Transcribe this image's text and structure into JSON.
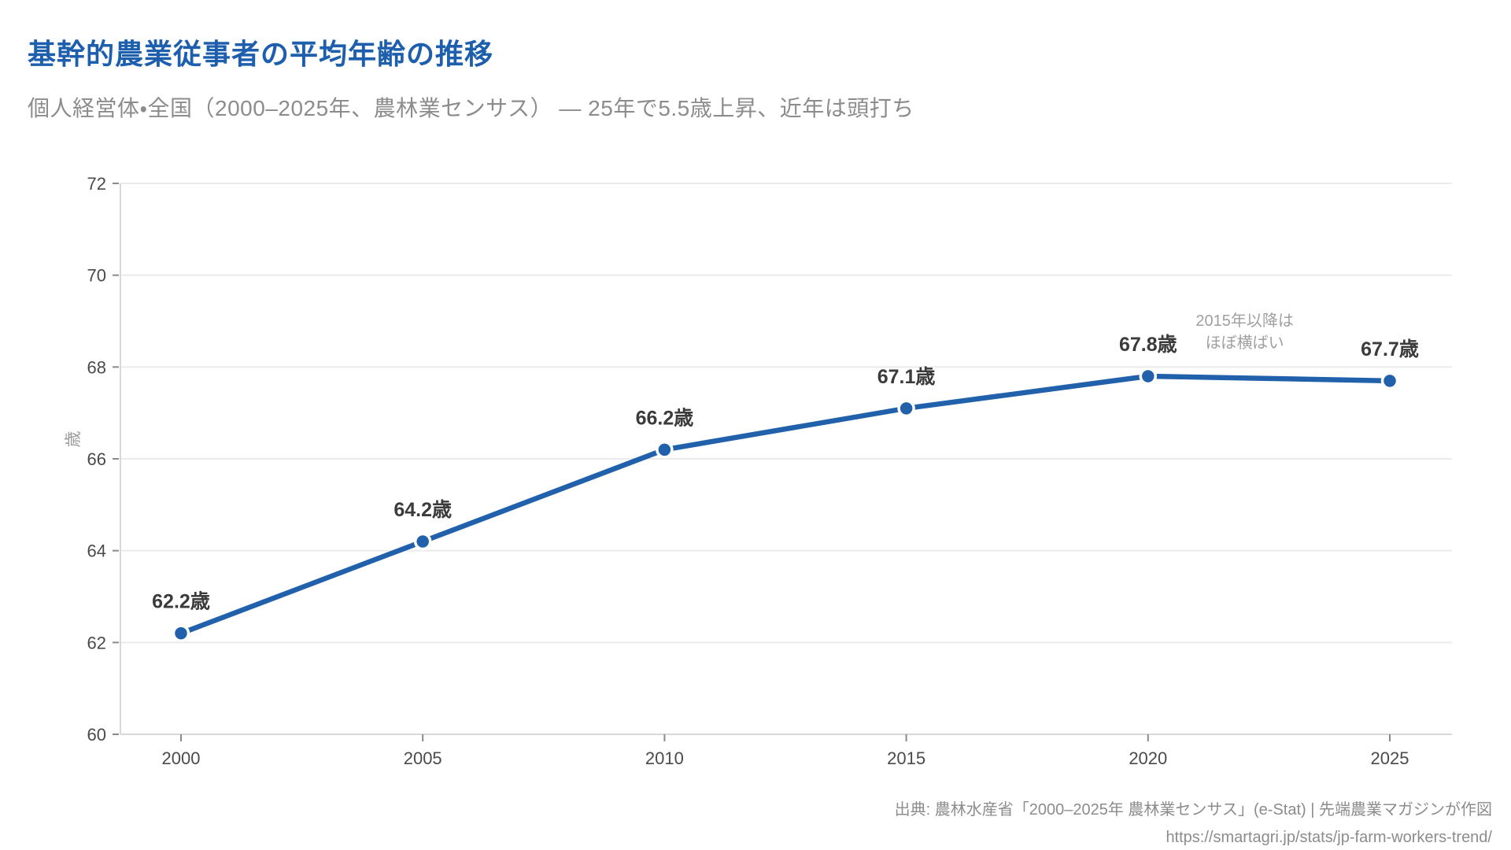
{
  "header": {
    "title": "基幹的農業従事者の平均年齢の推移",
    "subtitle": "個人経営体・全国（2000–2025年、農林業センサス） — 25年で5.5歳上昇、近年は頭打ち"
  },
  "chart_data": {
    "type": "line",
    "x": [
      2000,
      2005,
      2010,
      2015,
      2020,
      2025
    ],
    "values": [
      62.2,
      64.2,
      66.2,
      67.1,
      67.8,
      67.7
    ],
    "point_labels": [
      "62.2歳",
      "64.2歳",
      "66.2歳",
      "67.1歳",
      "67.8歳",
      "67.7歳"
    ],
    "xticks": [
      "2000",
      "2005",
      "2010",
      "2015",
      "2020",
      "2025"
    ],
    "yticks": [
      60,
      62,
      64,
      66,
      68,
      70,
      72
    ],
    "ylim": [
      60,
      72
    ],
    "xlim": [
      2000,
      2025
    ],
    "ylabel": "歳",
    "xlabel": "",
    "grid": "horizontal",
    "legend": "none",
    "annotation": {
      "lines": [
        "2015年以降は",
        "ほぼ横ばい"
      ],
      "anchor_year": 2022,
      "anchor_age": 68.9
    },
    "colors": {
      "line": "#2161ac",
      "point_fill": "#2161ac",
      "point_ring": "#ffffff",
      "grid": "#ebebeb",
      "axis": "#d8d8d8",
      "tick": "#8a8a8a",
      "tick_label": "#4a4a4a",
      "data_label": "#3b3b3b",
      "annotation": "#a0a0a0",
      "axis_title": "#9a9a9a"
    }
  },
  "footer": {
    "source": "出典: 農林水産省「2000–2025年 農林業センサス」(e-Stat) | 先端農業マガジンが作図",
    "url": "https://smartagri.jp/stats/jp-farm-workers-trend/"
  }
}
